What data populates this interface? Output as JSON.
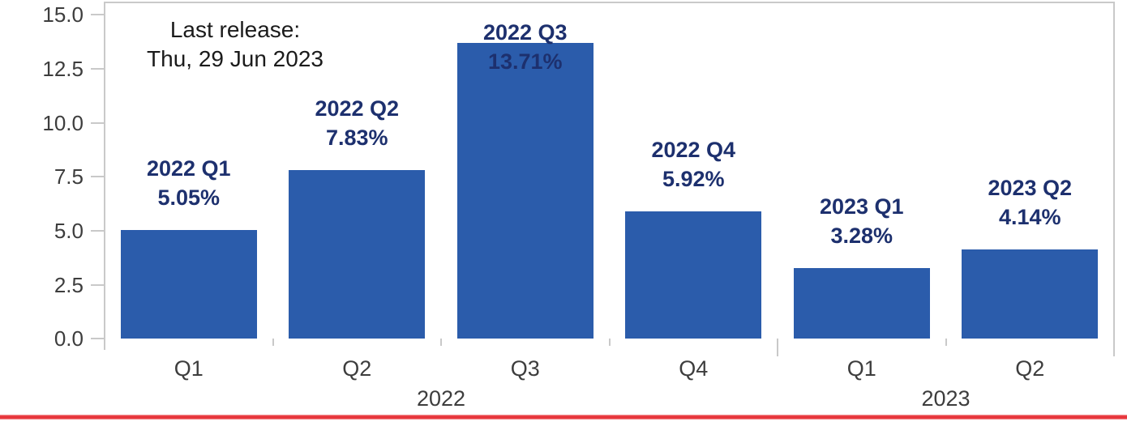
{
  "chart_data": {
    "type": "bar",
    "categories": [
      "Q1",
      "Q2",
      "Q3",
      "Q4",
      "Q1",
      "Q2"
    ],
    "values": [
      5.05,
      7.83,
      13.71,
      5.92,
      3.28,
      4.14
    ],
    "bar_labels": [
      {
        "line1": "2022 Q1",
        "line2": "5.05%"
      },
      {
        "line1": "2022 Q2",
        "line2": "7.83%"
      },
      {
        "line1": "2022 Q3",
        "line2": "13.71%"
      },
      {
        "line1": "2022 Q4",
        "line2": "5.92%"
      },
      {
        "line1": "2023 Q1",
        "line2": "3.28%"
      },
      {
        "line1": "2023 Q2",
        "line2": "4.14%"
      }
    ],
    "year_groups": [
      {
        "label": "2022",
        "start": 0,
        "end": 4
      },
      {
        "label": "2023",
        "start": 4,
        "end": 6
      }
    ],
    "yticks": [
      0.0,
      2.5,
      5.0,
      7.5,
      10.0,
      12.5,
      15.0
    ],
    "ytick_labels": [
      "0.0",
      "2.5",
      "5.0",
      "7.5",
      "10.0",
      "12.5",
      "15.0"
    ],
    "ylim": [
      0,
      15.6
    ],
    "grid": "off",
    "legend": "none",
    "annotation": {
      "line1": "Last release:",
      "line2": "Thu, 29 Jun 2023"
    },
    "colors": {
      "bar": "#2b5cab",
      "bar_label": "#1d306e",
      "axis": "#c9c9c9",
      "tick_text": "#3d3d3d",
      "annotation_text": "#1b1b1b",
      "bottom_rule": "#e7343a"
    }
  }
}
